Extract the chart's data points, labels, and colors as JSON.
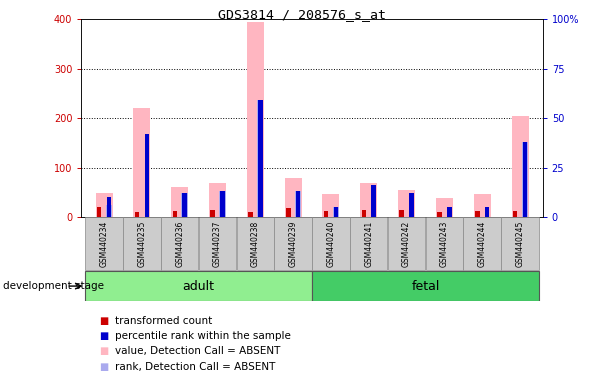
{
  "title": "GDS3814 / 208576_s_at",
  "samples": [
    "GSM440234",
    "GSM440235",
    "GSM440236",
    "GSM440237",
    "GSM440238",
    "GSM440239",
    "GSM440240",
    "GSM440241",
    "GSM440242",
    "GSM440243",
    "GSM440244",
    "GSM440245"
  ],
  "groups": [
    {
      "label": "adult",
      "indices": [
        0,
        1,
        2,
        3,
        4,
        5
      ],
      "color": "#90EE90"
    },
    {
      "label": "fetal",
      "indices": [
        6,
        7,
        8,
        9,
        10,
        11
      ],
      "color": "#44CC66"
    }
  ],
  "transformed_count": [
    20,
    10,
    12,
    15,
    10,
    18,
    12,
    15,
    14,
    10,
    12,
    13
  ],
  "percentile_rank": [
    10,
    42,
    12,
    13,
    59,
    13,
    5,
    16,
    12,
    5,
    5,
    38
  ],
  "value_absent": [
    48,
    220,
    60,
    68,
    395,
    78,
    46,
    68,
    55,
    38,
    46,
    205
  ],
  "rank_absent_pct": [
    6,
    0,
    12,
    13,
    59,
    13,
    5,
    0,
    0,
    0,
    0,
    38
  ],
  "ylim_left": [
    0,
    400
  ],
  "ylim_right": [
    0,
    100
  ],
  "yticks_left": [
    0,
    100,
    200,
    300,
    400
  ],
  "yticks_right": [
    0,
    25,
    50,
    75,
    100
  ],
  "color_transformed": "#CC0000",
  "color_percentile": "#0000CC",
  "color_value_absent": "#FFB6C1",
  "color_rank_absent": "#AAAAEE",
  "dev_stage_label": "development stage",
  "legend_items": [
    {
      "label": "transformed count",
      "color": "#CC0000"
    },
    {
      "label": "percentile rank within the sample",
      "color": "#0000CC"
    },
    {
      "label": "value, Detection Call = ABSENT",
      "color": "#FFB6C1"
    },
    {
      "label": "rank, Detection Call = ABSENT",
      "color": "#AAAAEE"
    }
  ]
}
